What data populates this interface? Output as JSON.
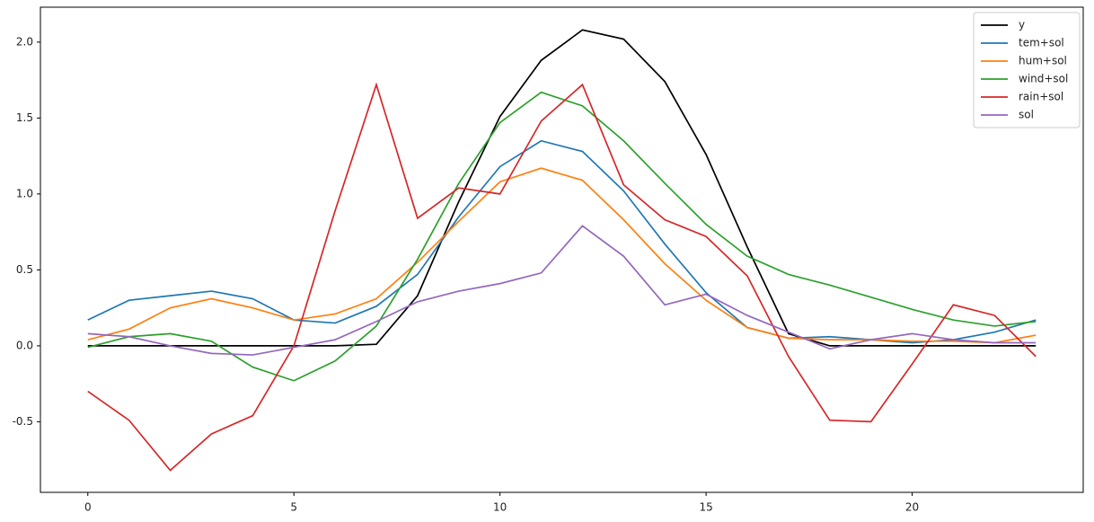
{
  "chart_data": {
    "type": "line",
    "x": [
      0,
      1,
      2,
      3,
      4,
      5,
      6,
      7,
      8,
      9,
      10,
      11,
      12,
      13,
      14,
      15,
      16,
      17,
      18,
      19,
      20,
      21,
      22,
      23
    ],
    "series": [
      {
        "name": "y",
        "color": "#000000",
        "values": [
          0,
          0,
          0,
          0,
          0,
          0,
          0,
          0.01,
          0.33,
          0.95,
          1.51,
          1.88,
          2.08,
          2.02,
          1.74,
          1.26,
          0.65,
          0.08,
          0,
          0,
          0,
          0,
          0,
          0
        ]
      },
      {
        "name": "tem+sol",
        "color": "#1f77b4",
        "values": [
          0.17,
          0.3,
          0.33,
          0.36,
          0.31,
          0.17,
          0.15,
          0.26,
          0.47,
          0.85,
          1.18,
          1.35,
          1.28,
          1.02,
          0.67,
          0.35,
          0.12,
          0.05,
          0.06,
          0.04,
          0.02,
          0.04,
          0.09,
          0.17
        ]
      },
      {
        "name": "hum+sol",
        "color": "#ff7f0e",
        "values": [
          0.04,
          0.11,
          0.25,
          0.31,
          0.25,
          0.17,
          0.21,
          0.31,
          0.55,
          0.82,
          1.08,
          1.17,
          1.09,
          0.83,
          0.54,
          0.3,
          0.12,
          0.05,
          0.04,
          0.04,
          0.03,
          0.03,
          0.02,
          0.07
        ]
      },
      {
        "name": "wind+sol",
        "color": "#2ca02c",
        "values": [
          -0.01,
          0.06,
          0.08,
          0.03,
          -0.14,
          -0.23,
          -0.1,
          0.13,
          0.57,
          1.07,
          1.47,
          1.67,
          1.58,
          1.35,
          1.07,
          0.8,
          0.59,
          0.47,
          0.4,
          0.32,
          0.24,
          0.17,
          0.13,
          0.16
        ]
      },
      {
        "name": "rain+sol",
        "color": "#d62728",
        "values": [
          -0.3,
          -0.49,
          -0.82,
          -0.58,
          -0.46,
          0.0,
          0.89,
          1.72,
          0.84,
          1.04,
          1.0,
          1.48,
          1.72,
          1.06,
          0.83,
          0.72,
          0.46,
          -0.07,
          -0.49,
          -0.5,
          -0.12,
          0.27,
          0.2,
          -0.07
        ]
      },
      {
        "name": "sol",
        "color": "#9467bd",
        "values": [
          0.08,
          0.06,
          0.0,
          -0.05,
          -0.06,
          -0.01,
          0.04,
          0.16,
          0.29,
          0.36,
          0.41,
          0.48,
          0.79,
          0.59,
          0.27,
          0.34,
          0.2,
          0.09,
          -0.02,
          0.04,
          0.08,
          0.04,
          0.02,
          0.02
        ]
      }
    ],
    "xlim": [
      -1.15,
      24.15
    ],
    "xticks": [
      0,
      5,
      10,
      15,
      20
    ],
    "ylim": [
      -0.965,
      2.23
    ],
    "yticks": [
      -0.5,
      {
        "value": 0,
        "label": "0.0"
      },
      0.5,
      {
        "value": 1,
        "label": "1.0"
      },
      1.5,
      {
        "value": 2,
        "label": "2.0"
      }
    ],
    "legend": "upper right"
  }
}
